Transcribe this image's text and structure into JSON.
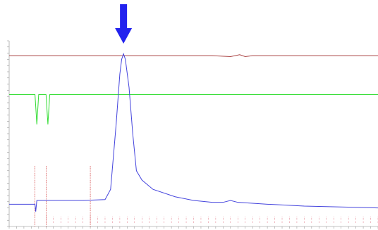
{
  "chart_data": {
    "type": "line",
    "title": "",
    "xlabel": "",
    "ylabel": "",
    "ylim": [
      0,
      1
    ],
    "xlim": [
      0,
      1
    ],
    "grid": false,
    "legend": "none",
    "series": [
      {
        "color": "#aa4444",
        "values": [
          [
            0.0,
            0.92
          ],
          [
            0.25,
            0.92
          ],
          [
            0.55,
            0.92
          ],
          [
            0.6,
            0.915
          ],
          [
            0.625,
            0.925
          ],
          [
            0.64,
            0.915
          ],
          [
            0.66,
            0.92
          ],
          [
            1.0,
            0.92
          ]
        ]
      },
      {
        "color": "#33dd33",
        "values": [
          [
            0.0,
            0.71
          ],
          [
            0.07,
            0.71
          ],
          [
            0.075,
            0.55
          ],
          [
            0.08,
            0.71
          ],
          [
            0.1,
            0.71
          ],
          [
            0.105,
            0.55
          ],
          [
            0.11,
            0.71
          ],
          [
            1.0,
            0.71
          ]
        ]
      },
      {
        "color": "#4444dd",
        "values": [
          [
            0.0,
            0.12
          ],
          [
            0.07,
            0.12
          ],
          [
            0.072,
            0.08
          ],
          [
            0.075,
            0.14
          ],
          [
            0.1,
            0.14
          ],
          [
            0.2,
            0.14
          ],
          [
            0.26,
            0.145
          ],
          [
            0.275,
            0.2
          ],
          [
            0.29,
            0.55
          ],
          [
            0.3,
            0.82
          ],
          [
            0.305,
            0.9
          ],
          [
            0.31,
            0.93
          ],
          [
            0.315,
            0.9
          ],
          [
            0.325,
            0.75
          ],
          [
            0.335,
            0.5
          ],
          [
            0.345,
            0.3
          ],
          [
            0.36,
            0.25
          ],
          [
            0.39,
            0.2
          ],
          [
            0.45,
            0.16
          ],
          [
            0.5,
            0.14
          ],
          [
            0.55,
            0.13
          ],
          [
            0.58,
            0.13
          ],
          [
            0.6,
            0.14
          ],
          [
            0.62,
            0.13
          ],
          [
            0.7,
            0.12
          ],
          [
            0.8,
            0.11
          ],
          [
            1.0,
            0.1
          ]
        ]
      }
    ],
    "event_markers": [
      0.07,
      0.1,
      0.22
    ],
    "ytick_labels": [],
    "xtick_labels": [],
    "marker_arrow": {
      "color": "#2222ee",
      "x": 0.31
    }
  }
}
